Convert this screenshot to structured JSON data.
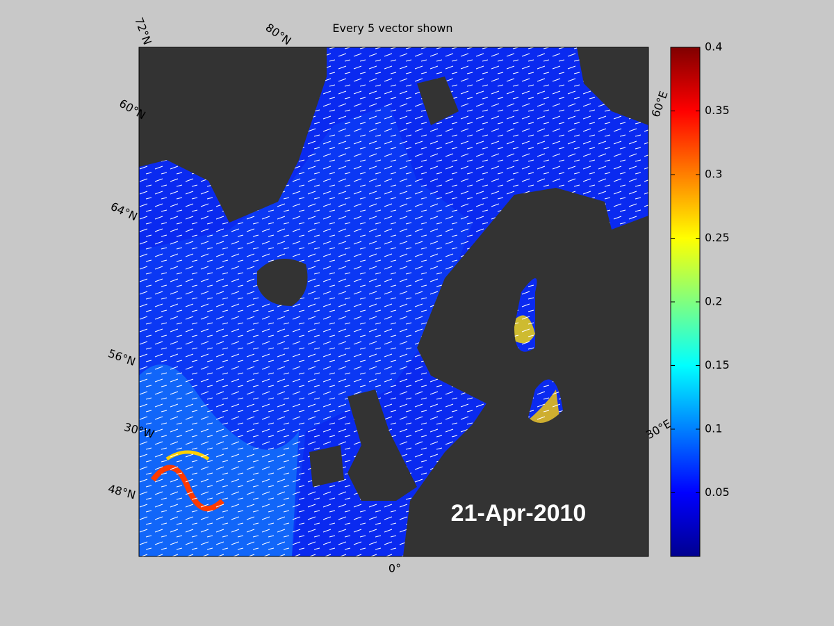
{
  "title": "Every 5 vector shown",
  "date_label": "21-Apr-2010",
  "graticule_labels": [
    "72°N",
    "80°N",
    "60°N",
    "64°N",
    "56°N",
    "30°W",
    "48°N",
    "0°",
    "30°E",
    "60°E"
  ],
  "colorbar": {
    "lim": [
      0,
      0.4
    ],
    "ticks": [
      0.05,
      0.1,
      0.15,
      0.2,
      0.25,
      0.3,
      0.35,
      0.4
    ]
  }
}
